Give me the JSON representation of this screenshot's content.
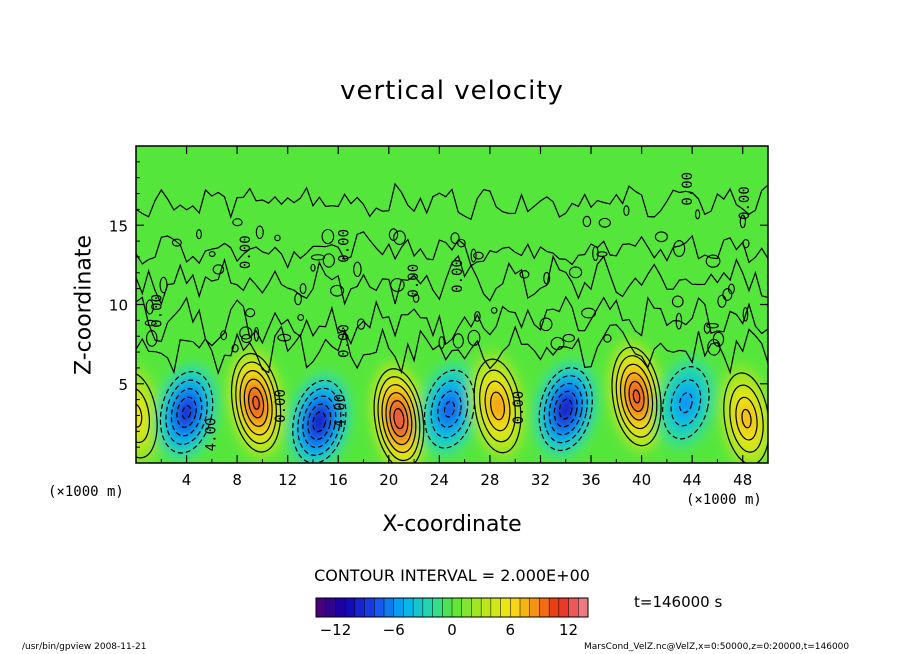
{
  "footer": {
    "program": "/usr/bin/gpview   2008-11-21",
    "source": "MarsCond_VelZ.nc@VelZ,x=0:50000,z=0:20000,t=146000"
  },
  "chart_data": {
    "type": "heatmap",
    "title": "vertical velocity",
    "xlabel": "X-coordinate",
    "ylabel": "Z-coordinate",
    "x_unit": "(×1000 m)",
    "z_unit": "(×1000 m)",
    "xlim": [
      0,
      50
    ],
    "ylim": [
      0,
      20
    ],
    "x_ticks": [
      4,
      8,
      12,
      16,
      20,
      24,
      28,
      32,
      36,
      40,
      44,
      48
    ],
    "y_ticks": [
      5,
      10,
      15
    ],
    "contour_interval": "CONTOUR INTERVAL = 2.000E+00",
    "time_label": "t=146000 s",
    "colorbar": {
      "min": -14,
      "max": 14,
      "step": 1,
      "ticks": [
        -12,
        -6,
        0,
        6,
        12
      ]
    },
    "contour_labels": [
      {
        "text": "0.00",
        "x": 9.0,
        "z": 13.3
      },
      {
        "text": "0.00",
        "x": 2.0,
        "z": 9.6
      },
      {
        "text": "0.00",
        "x": 16.8,
        "z": 13.7
      },
      {
        "text": "0.00",
        "x": 22.3,
        "z": 11.5
      },
      {
        "text": "0.00",
        "x": 25.8,
        "z": 11.8
      },
      {
        "text": "0.00",
        "x": 16.8,
        "z": 7.7
      },
      {
        "text": "0.00",
        "x": 11.8,
        "z": 3.6
      },
      {
        "text": "0.00",
        "x": 30.6,
        "z": 3.5
      },
      {
        "text": "0.00",
        "x": 44.0,
        "z": 17.3
      },
      {
        "text": "0.00",
        "x": 48.5,
        "z": 16.4
      },
      {
        "text": "4.00",
        "x": 6.3,
        "z": 1.8
      },
      {
        "text": "4.00",
        "x": 16.5,
        "z": 3.3
      }
    ],
    "cells": [
      {
        "kind": "updraft",
        "x": 0.0,
        "z": 3.0,
        "amplitude": 6
      },
      {
        "kind": "downdraft",
        "x": 4.0,
        "z": 3.2,
        "amplitude": -10
      },
      {
        "kind": "updraft",
        "x": 9.5,
        "z": 3.8,
        "amplitude": 12
      },
      {
        "kind": "downdraft",
        "x": 14.5,
        "z": 2.6,
        "amplitude": -11
      },
      {
        "kind": "updraft",
        "x": 20.8,
        "z": 2.8,
        "amplitude": 13
      },
      {
        "kind": "downdraft",
        "x": 24.8,
        "z": 3.4,
        "amplitude": -8
      },
      {
        "kind": "updraft",
        "x": 28.6,
        "z": 3.6,
        "amplitude": 9
      },
      {
        "kind": "downdraft",
        "x": 34.0,
        "z": 3.4,
        "amplitude": -11
      },
      {
        "kind": "updraft",
        "x": 39.6,
        "z": 4.2,
        "amplitude": 12
      },
      {
        "kind": "downdraft",
        "x": 43.5,
        "z": 3.8,
        "amplitude": -6
      },
      {
        "kind": "updraft",
        "x": 48.3,
        "z": 2.8,
        "amplitude": 8
      }
    ]
  }
}
